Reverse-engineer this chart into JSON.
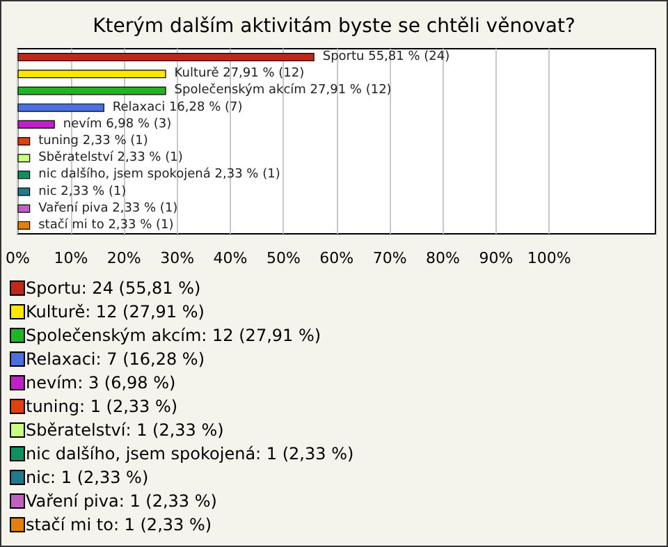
{
  "chart_data": {
    "type": "bar",
    "orientation": "horizontal",
    "stacked": true,
    "title": "Kterým dalším aktivitám byste se chtěli věnovat?",
    "categories": [
      "Sportu",
      "Kulturě",
      "Společenským akcím",
      "Relaxaci",
      "nevím",
      "tuning",
      "Sběratelství",
      "nic dalšího, jsem spokojená",
      "nic",
      "Vaření piva",
      "stačí mi to"
    ],
    "series": [
      {
        "name": "Sportu: 24 (55,81 %)",
        "color": "#c0281a",
        "values": [
          55.81,
          null,
          null,
          null,
          null,
          null,
          null,
          null,
          null,
          null,
          null
        ],
        "value_labels": [
          "55,81 % (24)",
          null,
          null,
          null,
          null,
          null,
          null,
          null,
          null,
          null,
          null
        ]
      },
      {
        "name": "Kulturě: 12 (27,91 %)",
        "color": "#ffe600",
        "values": [
          null,
          27.91,
          null,
          null,
          null,
          null,
          null,
          null,
          null,
          null,
          null
        ],
        "value_labels": [
          null,
          "27,91 % (12)",
          null,
          null,
          null,
          null,
          null,
          null,
          null,
          null,
          null
        ]
      },
      {
        "name": "Společenským akcím: 12 (27,91 %)",
        "color": "#22b422",
        "values": [
          null,
          null,
          27.91,
          null,
          null,
          null,
          null,
          null,
          null,
          null,
          null
        ],
        "value_labels": [
          null,
          null,
          "27,91 % (12)",
          null,
          null,
          null,
          null,
          null,
          null,
          null,
          null
        ]
      },
      {
        "name": "Relaxaci: 7 (16,28 %)",
        "color": "#4a70e0",
        "values": [
          null,
          null,
          null,
          16.28,
          null,
          null,
          null,
          null,
          null,
          null,
          null
        ],
        "value_labels": [
          null,
          null,
          null,
          "16,28 % (7)",
          null,
          null,
          null,
          null,
          null,
          null,
          null
        ]
      },
      {
        "name": "nevím: 3 (6,98 %)",
        "color": "#c020c8",
        "values": [
          null,
          null,
          null,
          null,
          6.98,
          null,
          null,
          null,
          null,
          null,
          null
        ],
        "value_labels": [
          null,
          null,
          null,
          null,
          "6,98 % (3)",
          null,
          null,
          null,
          null,
          null,
          null
        ]
      },
      {
        "name": "tuning: 1 (2,33 %)",
        "color": "#e04010",
        "values": [
          null,
          null,
          null,
          null,
          null,
          2.33,
          null,
          null,
          null,
          null,
          null
        ],
        "value_labels": [
          null,
          null,
          null,
          null,
          null,
          "2,33 % (1)",
          null,
          null,
          null,
          null,
          null
        ]
      },
      {
        "name": "Sběratelství: 1 (2,33 %)",
        "color": "#c8ff80",
        "values": [
          null,
          null,
          null,
          null,
          null,
          null,
          2.33,
          null,
          null,
          null,
          null
        ],
        "value_labels": [
          null,
          null,
          null,
          null,
          null,
          null,
          "2,33 % (1)",
          null,
          null,
          null,
          null
        ]
      },
      {
        "name": "nic dalšího, jsem spokojená: 1 (2,33 %)",
        "color": "#109060",
        "values": [
          null,
          null,
          null,
          null,
          null,
          null,
          null,
          2.33,
          null,
          null,
          null
        ],
        "value_labels": [
          null,
          null,
          null,
          null,
          null,
          null,
          null,
          "2,33 % (1)",
          null,
          null,
          null
        ]
      },
      {
        "name": "nic: 1 (2,33 %)",
        "color": "#207a8a",
        "values": [
          null,
          null,
          null,
          null,
          null,
          null,
          null,
          null,
          2.33,
          null,
          null
        ],
        "value_labels": [
          null,
          null,
          null,
          null,
          null,
          null,
          null,
          null,
          "2,33 % (1)",
          null,
          null
        ]
      },
      {
        "name": "Vaření piva: 1 (2,33 %)",
        "color": "#c060c0",
        "values": [
          null,
          null,
          null,
          null,
          null,
          null,
          null,
          null,
          null,
          2.33,
          null
        ],
        "value_labels": [
          null,
          null,
          null,
          null,
          null,
          null,
          null,
          null,
          null,
          "2,33 % (1)",
          null
        ]
      },
      {
        "name": "stačí mi to: 1 (2,33 %)",
        "color": "#e08010",
        "values": [
          null,
          null,
          null,
          null,
          null,
          null,
          null,
          null,
          null,
          null,
          2.33
        ],
        "value_labels": [
          null,
          null,
          null,
          null,
          null,
          null,
          null,
          null,
          null,
          null,
          "2,33 % (1)"
        ]
      }
    ],
    "xlim": [
      0,
      120
    ],
    "xticks": [
      {
        "value": 0,
        "label": "0%"
      },
      {
        "value": 10,
        "label": "10%"
      },
      {
        "value": 20,
        "label": "20%"
      },
      {
        "value": 30,
        "label": "30%"
      },
      {
        "value": 40,
        "label": "40%"
      },
      {
        "value": 50,
        "label": "50%"
      },
      {
        "value": 60,
        "label": "60%"
      },
      {
        "value": 70,
        "label": "70%"
      },
      {
        "value": 80,
        "label": "80%"
      },
      {
        "value": 90,
        "label": "90%"
      },
      {
        "value": 100,
        "label": "100%"
      }
    ],
    "grid": "x",
    "legend": "bottom",
    "tick_labels": "x"
  }
}
